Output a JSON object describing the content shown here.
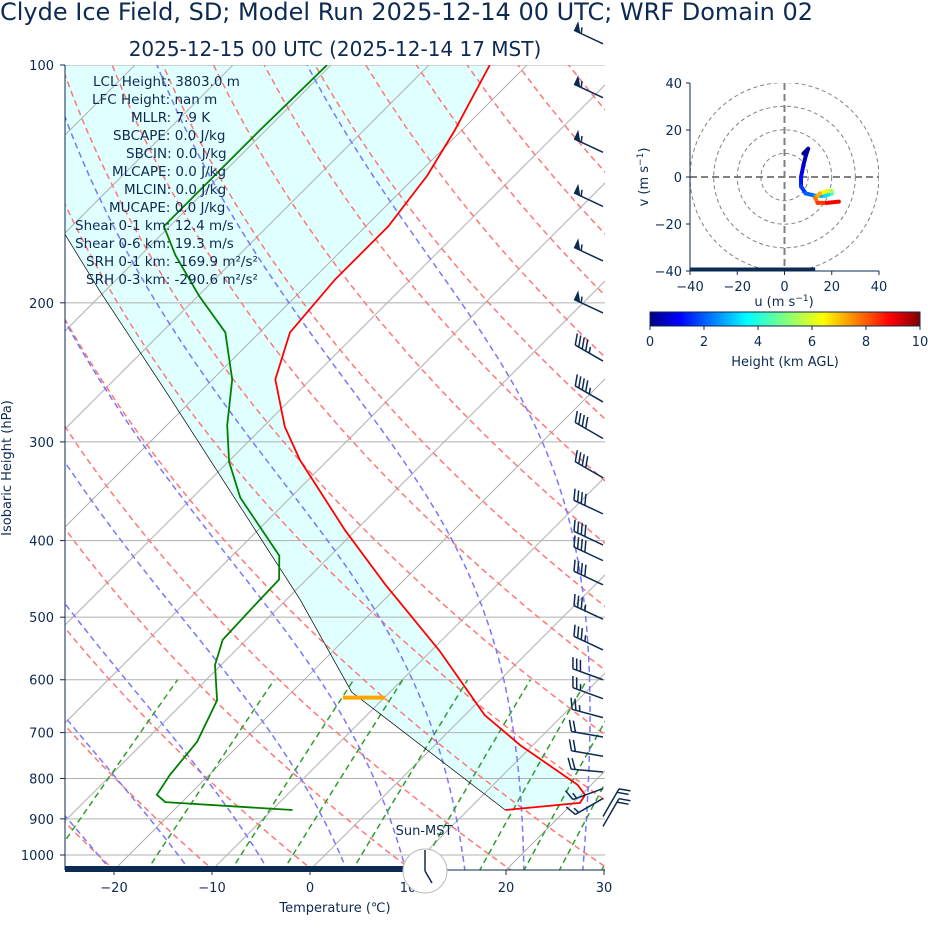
{
  "header": {
    "title": "Clyde Ice Field, SD; Model Run 2025-12-14 00 UTC; WRF Domain 02",
    "subtitle": "2025-12-15 00 UTC  (2025-12-14 17 MST)"
  },
  "chart_data": [
    {
      "type": "line",
      "subtype": "skew-T log-p",
      "xlabel": "Temperature (℃)",
      "ylabel": "Isobaric Height (hPa)",
      "xlim": [
        -25,
        30
      ],
      "ylim_hpa": [
        1050,
        100
      ],
      "y_scale": "log",
      "grid": true,
      "x_ticks": [
        "−20",
        "−10",
        "0",
        "10",
        "20",
        "30"
      ],
      "y_ticks": [
        "100",
        "200",
        "300",
        "400",
        "500",
        "600",
        "700",
        "800",
        "900",
        "1000"
      ],
      "temperature": {
        "color": "#ff0000",
        "pressure": [
          877,
          859,
          839,
          815,
          726,
          665,
          551,
          455,
          388,
          316,
          287,
          250,
          218,
          187,
          160,
          138,
          121,
          100
        ],
        "values": [
          13.8,
          20.7,
          20.4,
          18.6,
          8.7,
          2.0,
          -9.2,
          -21.4,
          -31.1,
          -42.9,
          -47.8,
          -53.6,
          -56.9,
          -57.7,
          -57.7,
          -58.9,
          -60.7,
          -63.8
        ]
      },
      "dewpoint": {
        "color": "#008000",
        "pressure": [
          877,
          857,
          839,
          792,
          719,
          637,
          575,
          534,
          475,
          448,
          418,
          353,
          318,
          286,
          250,
          218,
          196,
          174,
          160,
          144,
          121,
          100
        ],
        "values": [
          -7.9,
          -21.7,
          -23.3,
          -24.0,
          -24.6,
          -26.8,
          -30.6,
          -32.4,
          -32.7,
          -32.8,
          -35.2,
          -45.1,
          -49.9,
          -53.8,
          -58.0,
          -63.5,
          -69.9,
          -76.5,
          -80.6,
          -80.6,
          -80.6,
          -80.4
        ]
      },
      "parcel": {
        "color": "#000000",
        "pressure": [
          877,
          622,
          475,
          361,
          265,
          193,
          164
        ],
        "values": [
          13.8,
          -13.9,
          -28.6,
          -44.4,
          -62.2,
          -80.6,
          -89.8
        ]
      },
      "lcl_marker": {
        "pressure": 632,
        "color": "#ffa500"
      },
      "shading_color": "#e0ffff",
      "background_lines": {
        "isotherms_color": "#b0b0b0",
        "dry_adiabats_color": "#ff7777",
        "moist_adiabats_color": "#7777ff",
        "mixing_ratio_color": "#2e9e2e"
      },
      "wind_barbs": {
        "color": "#0d2a52",
        "pressure": [
          94,
          110,
          129,
          151,
          177,
          206,
          237,
          267,
          297,
          333,
          370,
          405,
          424,
          455,
          503,
          550,
          600,
          634,
          670,
          709,
          750,
          785,
          824,
          848,
          894,
          920
        ],
        "speed_kt": [
          55,
          55,
          55,
          55,
          55,
          55,
          45,
          45,
          40,
          40,
          40,
          40,
          40,
          40,
          35,
          35,
          30,
          25,
          25,
          20,
          20,
          20,
          15,
          15,
          20,
          20
        ],
        "direction_deg": [
          295,
          295,
          295,
          295,
          295,
          295,
          300,
          300,
          300,
          300,
          295,
          295,
          295,
          295,
          295,
          295,
          290,
          290,
          285,
          280,
          280,
          275,
          250,
          240,
          30,
          30
        ]
      },
      "annotations": [
        "LCL Height: 3803.0 m",
        "LFC Height: nan m",
        "MLLR: 7.9 K",
        "SBCAPE: 0.0 J/kg",
        "SBCIN: 0.0 J/kg",
        "MLCAPE: 0.0 J/kg",
        "MLCIN: 0.0 J/kg",
        "MUCAPE: 0.0 J/kg",
        "Shear 0-1 km: 12.4 m/s",
        "Shear 0-6 km: 19.3 m/s",
        "SRH 0-1 km: -169.9 m²/s²",
        "SRH 0-3 km: -290.6 m²/s²"
      ],
      "sun_clock": {
        "label": "Sun-MST",
        "hour": 17,
        "minute": 0,
        "daylight_bar_color": "#0d2a52"
      }
    },
    {
      "type": "line",
      "subtype": "hodograph",
      "xlabel": "u (m s⁻¹)",
      "ylabel": "v (m s⁻¹)",
      "xlim": [
        -40,
        40
      ],
      "ylim": [
        -40,
        40
      ],
      "x_ticks": [
        "−40",
        "−20",
        "0",
        "20",
        "40"
      ],
      "y_ticks": [
        "40",
        "20",
        "0",
        "−20",
        "−40"
      ],
      "rings": [
        10,
        20,
        30,
        40
      ],
      "u": [
        8,
        10,
        9,
        8,
        7,
        7,
        9,
        13,
        17,
        20,
        20,
        18,
        15,
        13,
        14,
        18,
        23
      ],
      "v": [
        10,
        12,
        9,
        5,
        0,
        -4,
        -7,
        -8,
        -8,
        -7,
        -6,
        -6,
        -7,
        -9,
        -11,
        -11,
        -10.5
      ],
      "height_km": [
        0,
        0.3,
        0.6,
        1,
        1.4,
        1.8,
        2.2,
        2.8,
        3.5,
        4.5,
        5.5,
        6.3,
        7,
        7.6,
        8.2,
        8.8,
        9.4
      ],
      "colorbar": {
        "label": "Height (km AGL)",
        "range": [
          0,
          10
        ],
        "ticks": [
          "0",
          "2",
          "4",
          "6",
          "8",
          "10"
        ],
        "colormap": "jet"
      }
    }
  ]
}
